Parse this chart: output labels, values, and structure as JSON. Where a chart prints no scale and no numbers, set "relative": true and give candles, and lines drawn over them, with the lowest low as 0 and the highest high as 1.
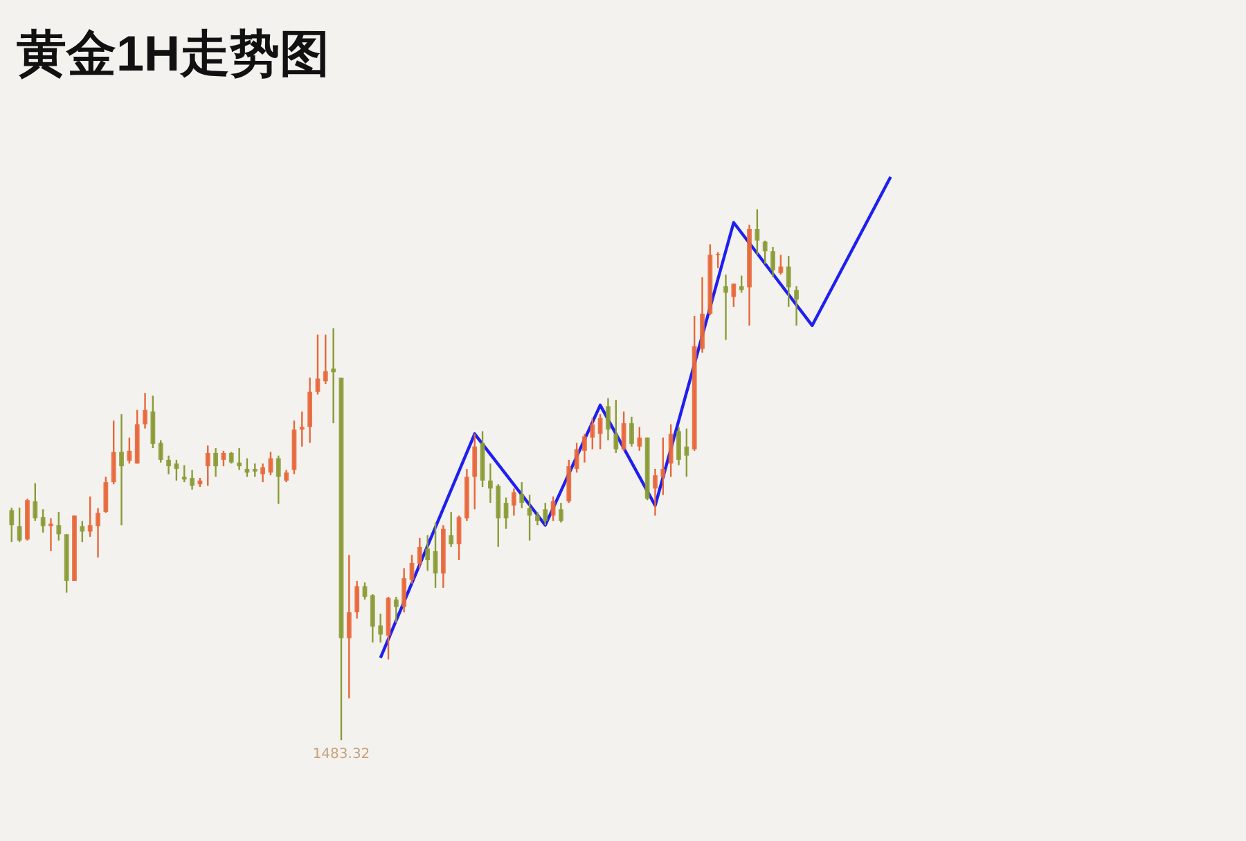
{
  "chart_data": {
    "type": "candlestick",
    "title": "黄金1H走势图",
    "relative": true,
    "categories": [
      null,
      null,
      null,
      null,
      null,
      null,
      null,
      null,
      null,
      null,
      null,
      null,
      null,
      null,
      null,
      null,
      null,
      null,
      null,
      null,
      null,
      null,
      null,
      null,
      null,
      null,
      null,
      null,
      null,
      null,
      null,
      null,
      null,
      null,
      null,
      null,
      null,
      null,
      null,
      null,
      null,
      null,
      null,
      null,
      null,
      null,
      null,
      null,
      null,
      null,
      null,
      null,
      null,
      null,
      null,
      null,
      null,
      null,
      null,
      null,
      null,
      null,
      null,
      null,
      null,
      null,
      null,
      null,
      null,
      null,
      null,
      null,
      null,
      null,
      null,
      null,
      null,
      null,
      null,
      null,
      null,
      null,
      null,
      null,
      null,
      null,
      null,
      null,
      null,
      null,
      null,
      null,
      null,
      null,
      null,
      null,
      null,
      null,
      null,
      null,
      null,
      null,
      null,
      null,
      null,
      null,
      null,
      null,
      null,
      null,
      null,
      null,
      null
    ],
    "ohlc": [
      [
        0.433,
        0.438,
        0.373,
        0.405
      ],
      [
        0.403,
        0.438,
        0.373,
        0.376
      ],
      [
        0.378,
        0.455,
        0.376,
        0.452
      ],
      [
        0.45,
        0.484,
        0.413,
        0.418
      ],
      [
        0.42,
        0.435,
        0.391,
        0.403
      ],
      [
        0.403,
        0.418,
        0.356,
        0.408
      ],
      [
        0.405,
        0.43,
        0.376,
        0.388
      ],
      [
        0.388,
        0.388,
        0.278,
        0.3
      ],
      [
        0.3,
        0.423,
        0.3,
        0.423
      ],
      [
        0.403,
        0.413,
        0.373,
        0.393
      ],
      [
        0.393,
        0.459,
        0.383,
        0.405
      ],
      [
        0.403,
        0.437,
        0.344,
        0.428
      ],
      [
        0.43,
        0.496,
        0.428,
        0.486
      ],
      [
        0.486,
        0.602,
        0.482,
        0.543
      ],
      [
        0.543,
        0.614,
        0.405,
        0.516
      ],
      [
        0.526,
        0.57,
        0.521,
        0.545
      ],
      [
        0.521,
        0.622,
        0.521,
        0.595
      ],
      [
        0.595,
        0.654,
        0.587,
        0.622
      ],
      [
        0.619,
        0.649,
        0.55,
        0.558
      ],
      [
        0.56,
        0.565,
        0.523,
        0.528
      ],
      [
        0.528,
        0.536,
        0.501,
        0.516
      ],
      [
        0.521,
        0.528,
        0.489,
        0.511
      ],
      [
        0.496,
        0.518,
        0.486,
        0.491
      ],
      [
        0.494,
        0.509,
        0.472,
        0.479
      ],
      [
        0.482,
        0.494,
        0.477,
        0.489
      ],
      [
        0.516,
        0.555,
        0.479,
        0.541
      ],
      [
        0.541,
        0.55,
        0.496,
        0.516
      ],
      [
        0.528,
        0.545,
        0.516,
        0.541
      ],
      [
        0.541,
        0.543,
        0.521,
        0.523
      ],
      [
        0.523,
        0.55,
        0.509,
        0.516
      ],
      [
        0.511,
        0.531,
        0.496,
        0.504
      ],
      [
        0.511,
        0.521,
        0.496,
        0.506
      ],
      [
        0.501,
        0.521,
        0.486,
        0.514
      ],
      [
        0.504,
        0.543,
        0.499,
        0.531
      ],
      [
        0.531,
        0.536,
        0.445,
        0.496
      ],
      [
        0.489,
        0.509,
        0.486,
        0.504
      ],
      [
        0.509,
        0.602,
        0.501,
        0.585
      ],
      [
        0.585,
        0.619,
        0.553,
        0.59
      ],
      [
        0.59,
        0.683,
        0.56,
        0.656
      ],
      [
        0.656,
        0.764,
        0.651,
        0.681
      ],
      [
        0.676,
        0.764,
        0.671,
        0.695
      ],
      [
        0.7,
        0.776,
        0.597,
        0.693
      ],
      [
        0.683,
        0.683,
        0,
        0.192
      ],
      [
        0.192,
        0.349,
        0.079,
        0.241
      ],
      [
        0.241,
        0.3,
        0.229,
        0.29
      ],
      [
        0.29,
        0.297,
        0.265,
        0.27
      ],
      [
        0.273,
        0.275,
        0.184,
        0.214
      ],
      [
        0.216,
        0.238,
        0.184,
        0.199
      ],
      [
        0.197,
        0.27,
        0.152,
        0.268
      ],
      [
        0.265,
        0.27,
        0.221,
        0.251
      ],
      [
        0.251,
        0.324,
        0.241,
        0.305
      ],
      [
        0.302,
        0.349,
        0.295,
        0.334
      ],
      [
        0.332,
        0.381,
        0.324,
        0.364
      ],
      [
        0.361,
        0.386,
        0.319,
        0.339
      ],
      [
        0.356,
        0.41,
        0.287,
        0.314
      ],
      [
        0.314,
        0.405,
        0.287,
        0.398
      ],
      [
        0.386,
        0.43,
        0.364,
        0.369
      ],
      [
        0.369,
        0.423,
        0.339,
        0.42
      ],
      [
        0.418,
        0.511,
        0.413,
        0.496
      ],
      [
        0.496,
        0.577,
        0.435,
        0.553
      ],
      [
        0.56,
        0.582,
        0.477,
        0.489
      ],
      [
        0.489,
        0.521,
        0.447,
        0.474
      ],
      [
        0.479,
        0.482,
        0.364,
        0.418
      ],
      [
        0.447,
        0.457,
        0.398,
        0.418
      ],
      [
        0.442,
        0.474,
        0.423,
        0.467
      ],
      [
        0.464,
        0.486,
        0.437,
        0.447
      ],
      [
        0.437,
        0.462,
        0.376,
        0.423
      ],
      [
        0.423,
        0.43,
        0.405,
        0.413
      ],
      [
        0.435,
        0.447,
        0.405,
        0.413
      ],
      [
        0.423,
        0.459,
        0.413,
        0.45
      ],
      [
        0.435,
        0.447,
        0.41,
        0.413
      ],
      [
        0.45,
        0.528,
        0.447,
        0.516
      ],
      [
        0.511,
        0.56,
        0.504,
        0.548
      ],
      [
        0.545,
        0.577,
        0.523,
        0.572
      ],
      [
        0.57,
        0.607,
        0.548,
        0.595
      ],
      [
        0.577,
        0.614,
        0.548,
        0.607
      ],
      [
        0.629,
        0.644,
        0.565,
        0.585
      ],
      [
        0.577,
        0.641,
        0.541,
        0.548
      ],
      [
        0.548,
        0.619,
        0.545,
        0.597
      ],
      [
        0.597,
        0.609,
        0.553,
        0.558
      ],
      [
        0.553,
        0.59,
        0.545,
        0.57
      ],
      [
        0.57,
        0.57,
        0.452,
        0.455
      ],
      [
        0.474,
        0.511,
        0.423,
        0.499
      ],
      [
        0.496,
        0.57,
        0.462,
        0.511
      ],
      [
        0.521,
        0.595,
        0.496,
        0.577
      ],
      [
        0.582,
        0.59,
        0.518,
        0.528
      ],
      [
        0.553,
        0.587,
        0.496,
        0.536
      ],
      [
        0.548,
        0.799,
        0.545,
        0.742
      ],
      [
        0.737,
        0.872,
        0.73,
        0.803
      ],
      [
        0.803,
        0.934,
        0.801,
        0.914
      ],
      [
        0.914,
        0.919,
        0.889,
        0.916
      ],
      [
        0.855,
        0.877,
        0.754,
        0.843
      ],
      [
        0.835,
        0.86,
        0.816,
        0.86
      ],
      [
        0.855,
        0.875,
        0.843,
        0.848
      ],
      [
        0.853,
        0.971,
        0.781,
        0.963
      ],
      [
        0.963,
        1,
        0.914,
        0.941
      ],
      [
        0.939,
        0.941,
        0.897,
        0.921
      ],
      [
        0.921,
        0.929,
        0.872,
        0.885
      ],
      [
        0.88,
        0.914,
        0.877,
        0.892
      ],
      [
        0.892,
        0.912,
        0.816,
        0.853
      ],
      [
        0.848,
        0.855,
        0.781,
        0.83
      ],
      null,
      null,
      null,
      null,
      null,
      null,
      null,
      null,
      null,
      null,
      null,
      null
    ],
    "colors": [
      "#8a9b35",
      "#8a9b35",
      "#e8673a",
      "#8a9b35",
      "#8a9b35",
      "#e8673a",
      "#8a9b35",
      "#8a9b35",
      "#e8673a",
      "#8a9b35",
      "#e8673a",
      "#e8673a",
      "#e8673a",
      "#e8673a",
      "#8a9b35",
      "#e8673a",
      "#e8673a",
      "#e8673a",
      "#8a9b35",
      "#8a9b35",
      "#8a9b35",
      "#8a9b35",
      "#8a9b35",
      "#8a9b35",
      "#e8673a",
      "#e8673a",
      "#8a9b35",
      "#e8673a",
      "#8a9b35",
      "#8a9b35",
      "#8a9b35",
      "#8a9b35",
      "#e8673a",
      "#e8673a",
      "#8a9b35",
      "#e8673a",
      "#e8673a",
      "#e8673a",
      "#e8673a",
      "#e8673a",
      "#e8673a",
      "#8a9b35",
      "#8a9b35",
      "#e8673a",
      "#e8673a",
      "#8a9b35",
      "#8a9b35",
      "#8a9b35",
      "#e8673a",
      "#8a9b35",
      "#e8673a",
      "#e8673a",
      "#e8673a",
      "#8a9b35",
      "#8a9b35",
      "#e8673a",
      "#8a9b35",
      "#e8673a",
      "#e8673a",
      "#e8673a",
      "#8a9b35",
      "#8a9b35",
      "#8a9b35",
      "#8a9b35",
      "#e8673a",
      "#8a9b35",
      "#8a9b35",
      "#8a9b35",
      "#8a9b35",
      "#e8673a",
      "#8a9b35",
      "#e8673a",
      "#e8673a",
      "#e8673a",
      "#e8673a",
      "#e8673a",
      "#8a9b35",
      "#8a9b35",
      "#e8673a",
      "#8a9b35",
      "#e8673a",
      "#8a9b35",
      "#e8673a",
      "#e8673a",
      "#e8673a",
      "#8a9b35",
      "#8a9b35",
      "#e8673a",
      "#e8673a",
      "#e8673a",
      "#e8673a",
      "#8a9b35",
      "#e8673a",
      "#8a9b35",
      "#e8673a",
      "#8a9b35",
      "#8a9b35",
      "#8a9b35",
      "#e8673a",
      "#8a9b35",
      "#8a9b35",
      null,
      null,
      null,
      null,
      null,
      null,
      null,
      null,
      null,
      null,
      null,
      null
    ],
    "series": [
      {
        "type": "line",
        "color": "#1f1ff0",
        "values": [
          null,
          null,
          null,
          null,
          null,
          null,
          null,
          null,
          null,
          null,
          null,
          null,
          null,
          null,
          null,
          null,
          null,
          null,
          null,
          null,
          null,
          null,
          null,
          null,
          null,
          null,
          null,
          null,
          null,
          null,
          null,
          null,
          null,
          null,
          null,
          null,
          null,
          null,
          null,
          null,
          null,
          null,
          null,
          null,
          null,
          null,
          null,
          0.155,
          null,
          null,
          null,
          null,
          null,
          null,
          null,
          null,
          null,
          null,
          null,
          0.577,
          null,
          null,
          null,
          null,
          null,
          null,
          null,
          null,
          0.405,
          null,
          null,
          null,
          null,
          null,
          null,
          0.631,
          null,
          null,
          null,
          null,
          null,
          null,
          0.442,
          null,
          null,
          null,
          null,
          null,
          null,
          null,
          null,
          null,
          0.975,
          null,
          null,
          null,
          null,
          null,
          null,
          null,
          null,
          null,
          0.781,
          null,
          null,
          null,
          null,
          null,
          null,
          null,
          null,
          null,
          1.061
        ]
      }
    ],
    "marker": "none",
    "line_style": "solid",
    "annotations": [
      "1483.32"
    ]
  }
}
